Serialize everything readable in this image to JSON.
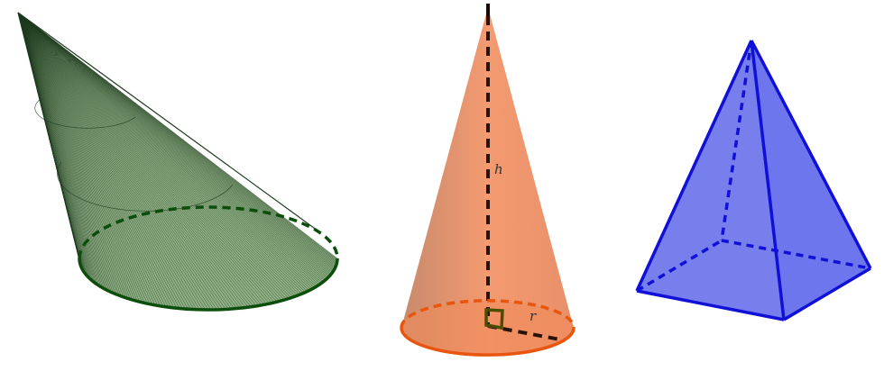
{
  "figures": {
    "oblique_cone": {
      "surface_color": "#6f9a63",
      "edge_color": "#0b4d0b",
      "line_color": "#1e3a1e"
    },
    "right_cone": {
      "labels": {
        "height": "h",
        "radius": "r"
      },
      "surface_color": "#eb946a",
      "edge_color": "#e8550e",
      "axis_color": "#2a1206",
      "right_angle_color": "#4d4d00"
    },
    "square_pyramid": {
      "surface_color": "#4a54e6",
      "edge_color": "#1010d6"
    }
  }
}
